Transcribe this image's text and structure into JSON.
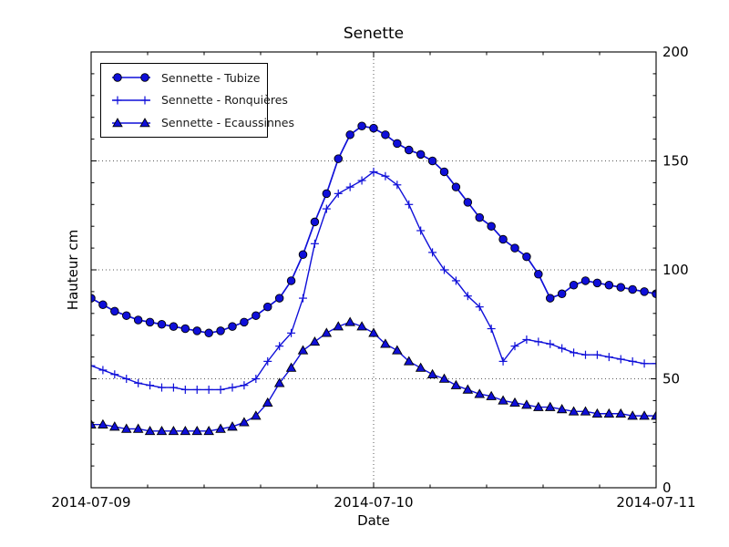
{
  "chart_data": {
    "type": "line",
    "title": "Senette",
    "xlabel": "Date",
    "ylabel": "Hauteur cm",
    "x_tick_labels": [
      "2014-07-09",
      "2014-07-10",
      "2014-07-11"
    ],
    "y_tick_labels": [
      "0",
      "50",
      "100",
      "150",
      "200"
    ],
    "ylim": [
      0,
      200
    ],
    "x_span_days": 2,
    "points_per_day": 24,
    "grid": true,
    "legend_position": "upper-left",
    "colors": {
      "line": "#0f0fd9",
      "marker_fill": "#0f0fd9",
      "marker_edge": "#000000",
      "grid": "#5a5a5a",
      "axis": "#000000",
      "background": "#ffffff"
    },
    "series": [
      {
        "name": "Sennette - Tubize",
        "marker": "circle",
        "values": [
          87,
          84,
          81,
          79,
          77,
          76,
          75,
          74,
          73,
          72,
          71,
          72,
          74,
          76,
          79,
          83,
          87,
          95,
          107,
          122,
          135,
          151,
          162,
          166,
          165,
          162,
          158,
          155,
          153,
          150,
          145,
          138,
          131,
          124,
          120,
          114,
          110,
          106,
          98,
          87,
          89,
          93,
          95,
          94,
          93,
          92,
          91,
          90,
          89
        ]
      },
      {
        "name": "Sennette - Ronquières",
        "marker": "plus",
        "values": [
          56,
          54,
          52,
          50,
          48,
          47,
          46,
          46,
          45,
          45,
          45,
          45,
          46,
          47,
          50,
          58,
          65,
          71,
          87,
          112,
          128,
          135,
          138,
          141,
          145,
          143,
          139,
          130,
          118,
          108,
          100,
          95,
          88,
          83,
          73,
          58,
          65,
          68,
          67,
          66,
          64,
          62,
          61,
          61,
          60,
          59,
          58,
          57,
          57
        ]
      },
      {
        "name": "Sennette - Ecaussinnes",
        "marker": "triangle-up",
        "values": [
          29,
          29,
          28,
          27,
          27,
          26,
          26,
          26,
          26,
          26,
          26,
          27,
          28,
          30,
          33,
          39,
          48,
          55,
          63,
          67,
          71,
          74,
          76,
          74,
          71,
          66,
          63,
          58,
          55,
          52,
          50,
          47,
          45,
          43,
          42,
          40,
          39,
          38,
          37,
          37,
          36,
          35,
          35,
          34,
          34,
          34,
          33,
          33,
          33
        ]
      }
    ]
  }
}
